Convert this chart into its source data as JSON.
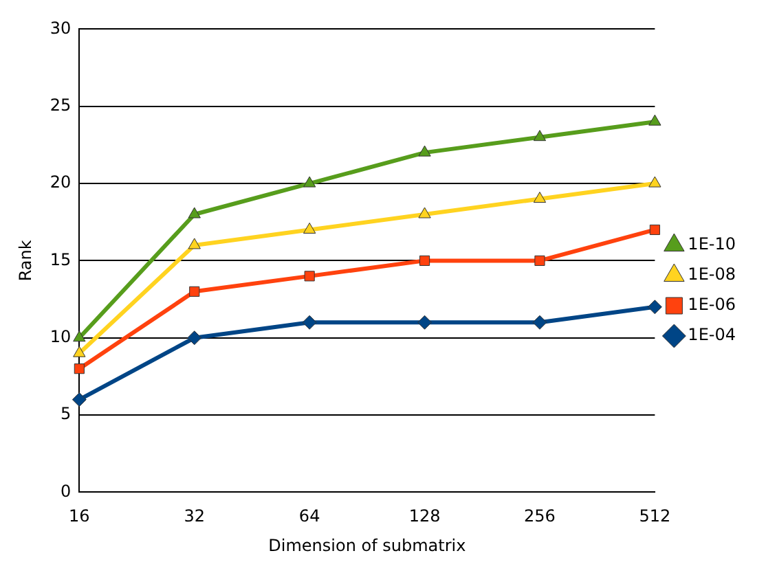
{
  "chart_data": {
    "type": "line",
    "xlabel": "Dimension of submatrix",
    "ylabel": "Rank",
    "categories": [
      "16",
      "32",
      "64",
      "128",
      "256",
      "512"
    ],
    "series": [
      {
        "name": "1E-10",
        "color": "#579d1c",
        "marker": "triangle",
        "values": [
          10,
          18,
          20,
          22,
          23,
          24
        ]
      },
      {
        "name": "1E-08",
        "color": "#ffd320",
        "marker": "triangle",
        "values": [
          9,
          16,
          17,
          18,
          19,
          20
        ]
      },
      {
        "name": "1E-06",
        "color": "#ff420e",
        "marker": "square",
        "values": [
          8,
          13,
          14,
          15,
          15,
          17
        ]
      },
      {
        "name": "1E-04",
        "color": "#004586",
        "marker": "diamond",
        "values": [
          6,
          10,
          11,
          11,
          11,
          12
        ]
      }
    ],
    "ylim": [
      0,
      30
    ],
    "yticks": [
      0,
      5,
      10,
      15,
      20,
      25,
      30
    ],
    "grid": "y",
    "legend": "right",
    "line_style": "solid"
  }
}
